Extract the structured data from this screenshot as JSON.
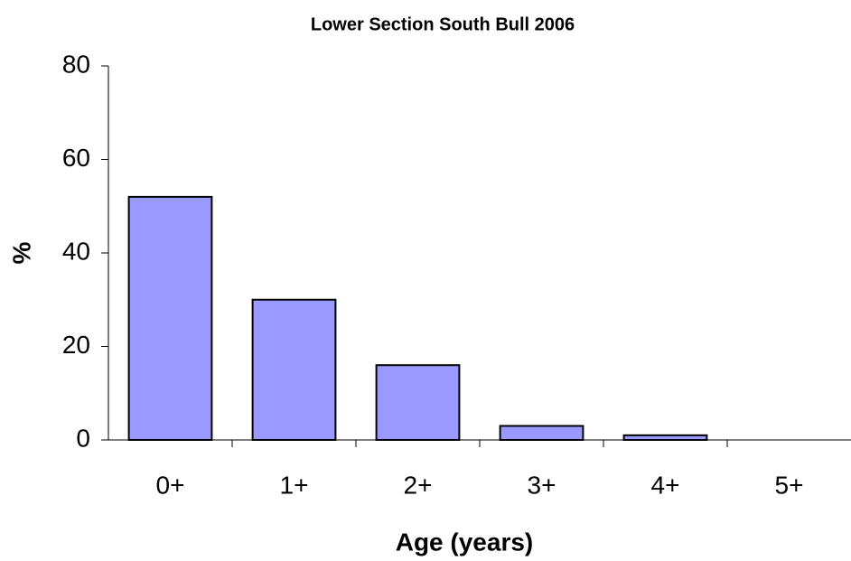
{
  "chart_data": {
    "type": "bar",
    "title": "Lower Section South Bull 2006",
    "x_label": "Age (years)",
    "y_label": "%",
    "categories": [
      "0+",
      "1+",
      "2+",
      "3+",
      "4+",
      "5+"
    ],
    "values": [
      52,
      30,
      16,
      3,
      1,
      0
    ],
    "color": "#9999ff",
    "ylim": [
      0,
      80
    ],
    "yticks": [
      0,
      20,
      40,
      60,
      80
    ],
    "grid": false
  }
}
